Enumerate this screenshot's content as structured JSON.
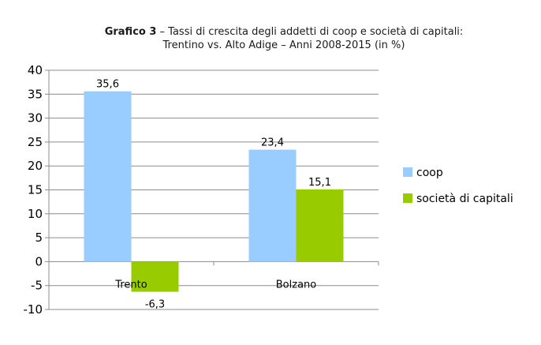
{
  "chart_data": {
    "type": "bar",
    "title_bold": "Grafico 3",
    "title_rest": " – Tassi di crescita degli addetti di coop e società di capitali:",
    "subtitle": "Trentino vs. Alto Adige – Anni 2008-2015 (in %)",
    "categories": [
      "Trento",
      "Bolzano"
    ],
    "series": [
      {
        "name": "coop",
        "values": [
          35.6,
          23.4
        ],
        "labels": [
          "35,6",
          "23,4"
        ],
        "color": "#99ccff"
      },
      {
        "name": "società di capitali",
        "values": [
          -6.3,
          15.1
        ],
        "labels": [
          "-6,3",
          "15,1"
        ],
        "color": "#99cc00"
      }
    ],
    "ylim": [
      -10,
      40
    ],
    "yticks": [
      40,
      35,
      30,
      25,
      20,
      15,
      10,
      5,
      0,
      -5,
      -10
    ],
    "grid": true,
    "legend_position": "right"
  }
}
